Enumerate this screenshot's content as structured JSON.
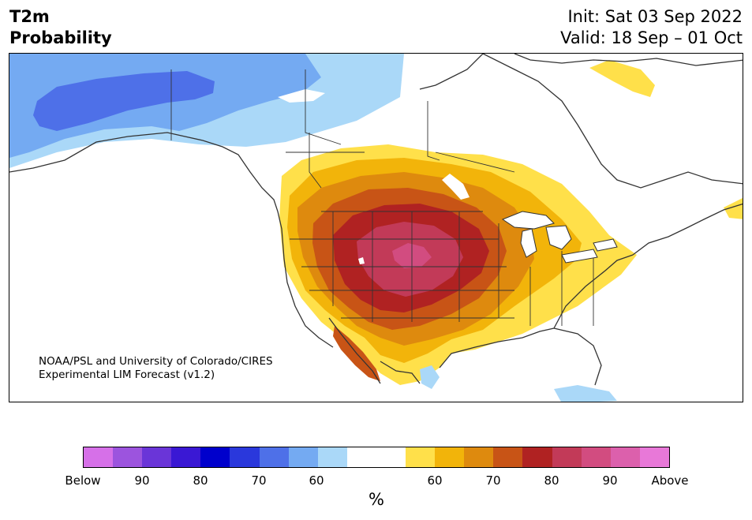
{
  "header": {
    "title_line1": "T2m",
    "title_line2": "Probability",
    "init": "Init: Sat 03 Sep 2022",
    "valid": "Valid: 18 Sep – 01 Oct"
  },
  "credit": {
    "line1": "NOAA/PSL and University of Colorado/CIRES",
    "line2": "Experimental LIM Forecast (v1.2)"
  },
  "colorbar": {
    "colors": [
      "#d670e8",
      "#9c54de",
      "#6a35d8",
      "#3a18d4",
      "#0000cc",
      "#2a38dc",
      "#4e70e8",
      "#74aaf2",
      "#aad8f8",
      "#ffffff",
      "#ffffff",
      "#ffe04a",
      "#f2b40a",
      "#de8a0e",
      "#c85416",
      "#b02222",
      "#c23a58",
      "#d24c80",
      "#dc60ac",
      "#e878d8"
    ],
    "labels": [
      "Below",
      "90",
      "80",
      "70",
      "60",
      "60",
      "70",
      "80",
      "90",
      "Above"
    ],
    "unit": "%"
  },
  "map_colors": {
    "blue_dark": "#4e70e8",
    "blue_mid": "#74aaf2",
    "blue_light": "#aad8f8",
    "yellow": "#ffe04a",
    "gold": "#f2b40a",
    "orange": "#de8a0e",
    "rust": "#c85416",
    "red": "#b02222",
    "crimson": "#c23a58",
    "pink": "#d24c80"
  }
}
